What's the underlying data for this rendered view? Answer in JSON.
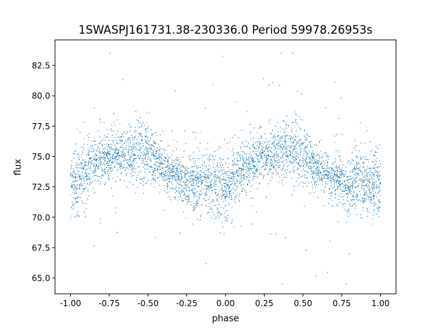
{
  "chart_data": {
    "type": "scatter",
    "title": "1SWASPJ161731.38-230336.0 Period 59978.26953s",
    "xlabel": "phase",
    "ylabel": "flux",
    "xlim": [
      -1.1,
      1.1
    ],
    "ylim": [
      63.7,
      84.6
    ],
    "xticks": [
      "-1.00",
      "-0.75",
      "-0.50",
      "-0.25",
      "0.00",
      "0.25",
      "0.50",
      "0.75",
      "1.00"
    ],
    "yticks": [
      "65.0",
      "67.5",
      "70.0",
      "72.5",
      "75.0",
      "77.5",
      "80.0",
      "82.5"
    ],
    "grid": false,
    "color": "#1f77b4",
    "phase_range": [
      -1.0,
      1.0
    ],
    "flux_range": [
      64.5,
      83.5
    ],
    "folded_profile": {
      "phase": [
        0.0,
        0.05,
        0.1,
        0.15,
        0.2,
        0.25,
        0.3,
        0.35,
        0.4,
        0.45,
        0.5,
        0.55,
        0.6,
        0.65,
        0.7,
        0.75,
        0.8,
        0.85,
        0.9,
        0.95,
        1.0
      ],
      "mean_flux": [
        72.6,
        73.0,
        73.8,
        74.3,
        74.7,
        75.0,
        75.2,
        75.3,
        75.4,
        75.6,
        75.3,
        74.6,
        74.0,
        73.6,
        73.2,
        72.9,
        72.8,
        72.9,
        72.8,
        72.6,
        72.6
      ],
      "scatter": [
        1.4,
        1.3,
        1.2,
        1.1,
        1.0,
        1.0,
        1.0,
        1.1,
        1.2,
        1.3,
        1.2,
        1.0,
        0.9,
        0.9,
        0.9,
        1.0,
        1.1,
        1.2,
        1.3,
        1.4,
        1.4
      ]
    }
  }
}
